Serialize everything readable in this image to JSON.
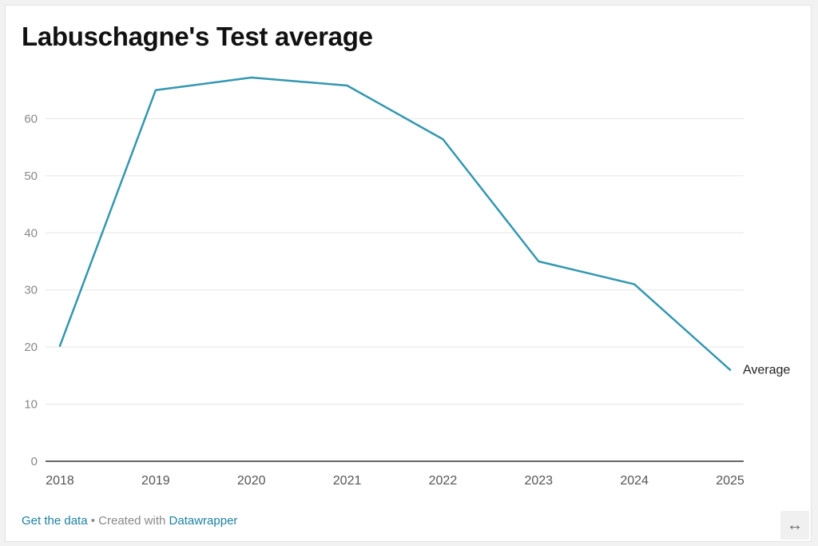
{
  "header": {
    "title": "Labuschagne's Test average"
  },
  "chart_data": {
    "type": "line",
    "title": "Labuschagne's Test average",
    "x": [
      "2018",
      "2019",
      "2020",
      "2021",
      "2022",
      "2023",
      "2024",
      "2025"
    ],
    "series": [
      {
        "name": "Average",
        "values": [
          20.2,
          65,
          67.2,
          65.8,
          56.4,
          35,
          31,
          16
        ],
        "color": "#3497b0"
      }
    ],
    "yticks": [
      "0",
      "10",
      "20",
      "30",
      "40",
      "50",
      "60"
    ],
    "ylim": [
      0,
      70
    ],
    "grid": "horizontal",
    "xlabel": "",
    "ylabel": ""
  },
  "footer": {
    "get_data_label": "Get the data",
    "separator": " • Created with ",
    "created_with_label": "Datawrapper"
  },
  "controls": {
    "expand_icon": "↔"
  },
  "colors": {
    "line": "#3497b0",
    "link": "#1d81a2",
    "grid": "#e5e5e5",
    "axis": "#333333",
    "tick": "#888888"
  }
}
